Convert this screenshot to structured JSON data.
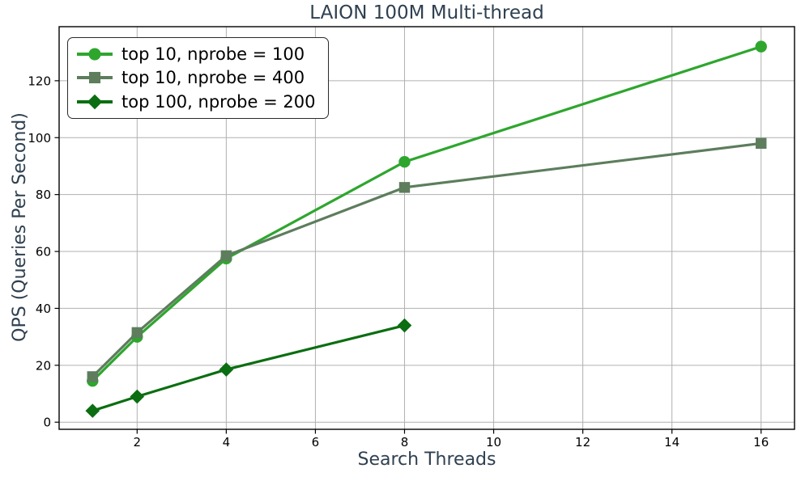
{
  "colors": {
    "background": "#ffffff",
    "title_text": "#2f4050",
    "axis_label_text": "#2f4050",
    "tick_text": "#000000",
    "grid": "#b0b0b0",
    "spine": "#000000",
    "legend_border": "#2a2a2a",
    "legend_text": "#000000"
  },
  "chart_data": {
    "type": "line",
    "title": "LAION 100M Multi-thread",
    "xlabel": "Search Threads",
    "ylabel": "QPS (Queries Per Second)",
    "xlim": [
      0.25,
      16.75
    ],
    "ylim": [
      -2.5,
      139.0
    ],
    "xticks": [
      2,
      4,
      6,
      8,
      10,
      12,
      14,
      16
    ],
    "yticks": [
      0,
      20,
      40,
      60,
      80,
      100,
      120
    ],
    "grid": true,
    "legend_position": "upper left",
    "series": [
      {
        "name": "top 10, nprobe = 100",
        "marker": "circle",
        "color": "#2ea62e",
        "x": [
          1,
          2,
          4,
          8,
          16
        ],
        "y": [
          14.5,
          30,
          57.5,
          91.5,
          132
        ]
      },
      {
        "name": "top 10, nprobe = 400",
        "marker": "square",
        "color": "#5d7d5d",
        "x": [
          1,
          2,
          4,
          8,
          16
        ],
        "y": [
          16,
          31.5,
          58.5,
          82.5,
          98
        ]
      },
      {
        "name": "top 100, nprobe = 200",
        "marker": "diamond",
        "color": "#0b6e11",
        "x": [
          1,
          2,
          4,
          8
        ],
        "y": [
          4,
          9,
          18.5,
          34
        ]
      }
    ]
  }
}
